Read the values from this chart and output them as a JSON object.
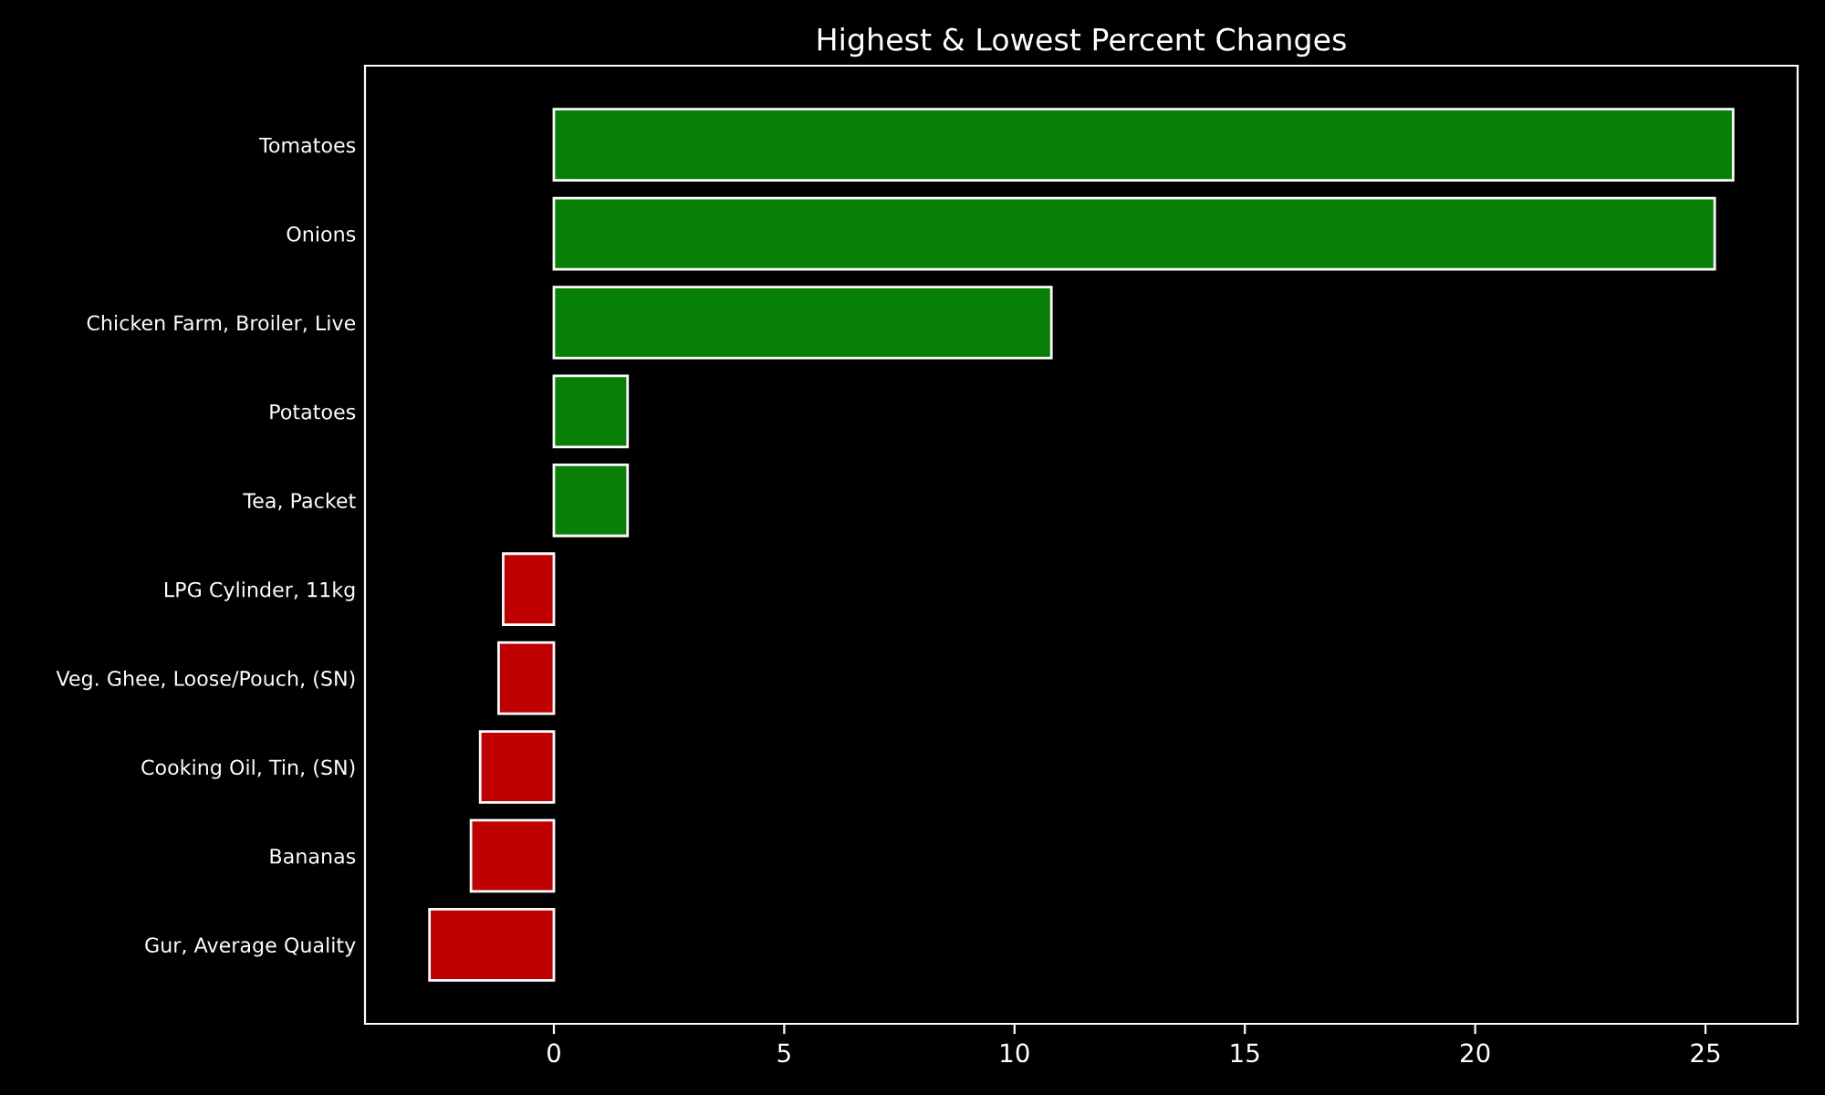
{
  "chart_data": {
    "type": "bar",
    "orientation": "horizontal",
    "title": "Highest & Lowest Percent Changes",
    "categories": [
      "Tomatoes",
      "Onions",
      "Chicken Farm, Broiler, Live",
      "Potatoes",
      "Tea, Packet",
      "LPG Cylinder, 11kg",
      "Veg. Ghee, Loose/Pouch, (SN)",
      "Cooking Oil, Tin, (SN)",
      "Bananas",
      "Gur, Average Quality"
    ],
    "values": [
      25.6,
      25.2,
      10.8,
      1.6,
      1.6,
      -1.1,
      -1.2,
      -1.6,
      -1.8,
      -2.7
    ],
    "colors": [
      "#088008",
      "#088008",
      "#088008",
      "#088008",
      "#088008",
      "#c00000",
      "#c00000",
      "#c00000",
      "#c00000",
      "#c00000"
    ],
    "xlim": [
      -4.1,
      27
    ],
    "xticks": [
      0,
      5,
      10,
      15,
      20,
      25
    ],
    "grid": false,
    "legend": false
  }
}
